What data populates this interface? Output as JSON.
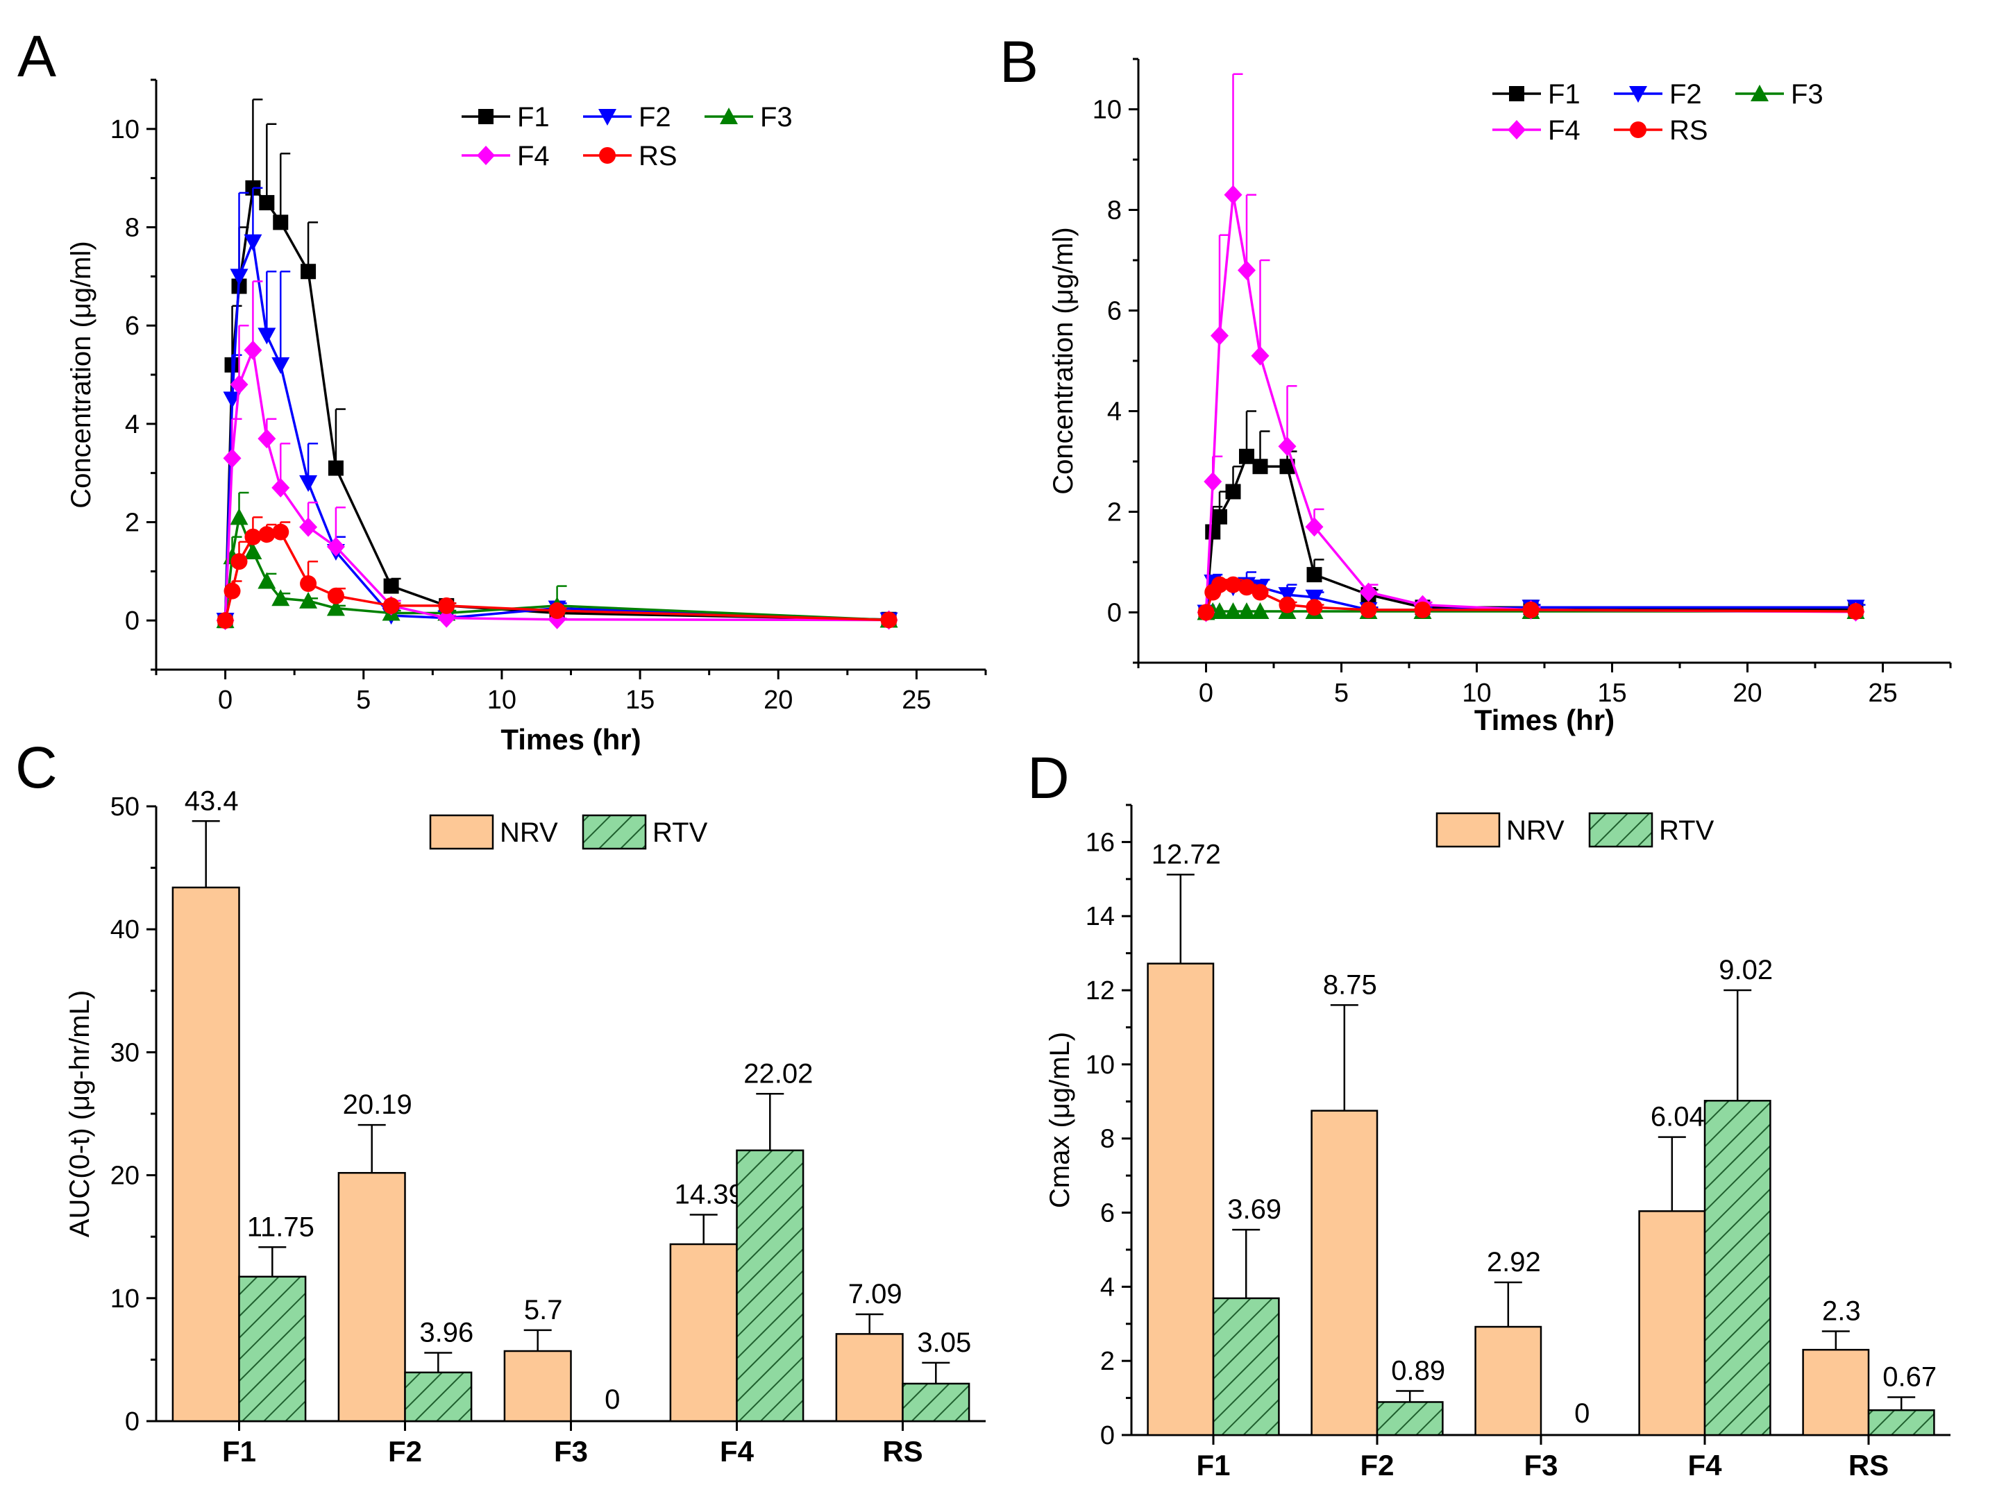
{
  "figure": {
    "panel_letters": [
      "A",
      "B",
      "C",
      "D"
    ]
  },
  "colors": {
    "F1": "#000000",
    "F2": "#0000ff",
    "F3": "#008000",
    "F4": "#ff00ff",
    "RS": "#ff0000",
    "NRV_fill": "#fdc896",
    "RTV_fill": "#8fd9a0",
    "RTV_hatch": "#1f5f2e"
  },
  "chart_data": [
    {
      "id": "A",
      "type": "line",
      "xlabel": "Times (hr)",
      "ylabel": "Concentration (μg/ml)",
      "xlim": [
        -2.5,
        27.5
      ],
      "ylim": [
        -1,
        11
      ],
      "xticks": [
        0,
        5,
        10,
        15,
        20,
        25
      ],
      "yticks": [
        0,
        2,
        4,
        6,
        8,
        10
      ],
      "x": [
        0,
        0.25,
        0.5,
        1,
        1.5,
        2,
        3,
        4,
        6,
        8,
        12,
        24
      ],
      "series": [
        {
          "name": "F1",
          "marker": "square",
          "values": [
            0,
            5.2,
            6.8,
            8.8,
            8.5,
            8.1,
            7.1,
            3.1,
            0.7,
            0.3,
            0.15,
            0.02
          ],
          "errors": [
            0,
            1.2,
            1.2,
            1.8,
            1.6,
            1.4,
            1.0,
            1.2,
            0.15,
            0.05,
            0.05,
            0
          ]
        },
        {
          "name": "F2",
          "marker": "triangle-down",
          "values": [
            0,
            4.5,
            7.0,
            7.7,
            5.8,
            5.2,
            2.8,
            1.4,
            0.1,
            0.05,
            0.25,
            0.01
          ],
          "errors": [
            0,
            0.9,
            1.7,
            1.1,
            1.3,
            1.9,
            0.8,
            0.3,
            0.05,
            0.02,
            0.1,
            0
          ]
        },
        {
          "name": "F3",
          "marker": "triangle-up",
          "values": [
            0,
            1.3,
            2.1,
            1.4,
            0.8,
            0.45,
            0.4,
            0.25,
            0.15,
            0.15,
            0.3,
            0.01
          ],
          "errors": [
            0,
            0.4,
            0.5,
            0.25,
            0.15,
            0.1,
            0.05,
            0.05,
            0.05,
            0.05,
            0.4,
            0
          ]
        },
        {
          "name": "F4",
          "marker": "diamond",
          "values": [
            0,
            3.3,
            4.8,
            5.5,
            3.7,
            2.7,
            1.9,
            1.5,
            0.3,
            0.05,
            0.02,
            0.01
          ],
          "errors": [
            0,
            0.8,
            1.2,
            1.4,
            0.4,
            0.9,
            0.5,
            0.8,
            0.1,
            0.05,
            0.02,
            0
          ]
        },
        {
          "name": "RS",
          "marker": "circle",
          "values": [
            0,
            0.6,
            1.2,
            1.7,
            1.75,
            1.8,
            0.75,
            0.5,
            0.3,
            0.3,
            0.2,
            0.01
          ],
          "errors": [
            0,
            0.2,
            0.4,
            0.4,
            0.2,
            0.2,
            0.45,
            0.15,
            0.05,
            0.05,
            0.05,
            0
          ]
        }
      ],
      "legend": [
        [
          "F1",
          "F2",
          "F3"
        ],
        [
          "F4",
          "RS"
        ]
      ]
    },
    {
      "id": "B",
      "type": "line",
      "xlabel": "Times (hr)",
      "ylabel": "Concentration (μg/ml)",
      "xlim": [
        -2.5,
        27.5
      ],
      "ylim": [
        -1,
        11
      ],
      "xticks": [
        0,
        5,
        10,
        15,
        20,
        25
      ],
      "yticks": [
        0,
        2,
        4,
        6,
        8,
        10
      ],
      "x": [
        0,
        0.25,
        0.5,
        1,
        1.5,
        2,
        3,
        4,
        6,
        8,
        12,
        24
      ],
      "series": [
        {
          "name": "F1",
          "marker": "square",
          "values": [
            0,
            1.6,
            1.9,
            2.4,
            3.1,
            2.9,
            2.9,
            0.75,
            0.35,
            0.1,
            0.1,
            0.05
          ],
          "errors": [
            0,
            0.5,
            0.5,
            0.5,
            0.9,
            0.7,
            0.3,
            0.3,
            0.1,
            0.05,
            0.05,
            0
          ]
        },
        {
          "name": "F2",
          "marker": "triangle-down",
          "values": [
            0,
            0.6,
            0.5,
            0.5,
            0.55,
            0.5,
            0.35,
            0.3,
            0.05,
            0.05,
            0.1,
            0.1
          ],
          "errors": [
            0,
            0.15,
            0.1,
            0.1,
            0.25,
            0.15,
            0.2,
            0.1,
            0.05,
            0.05,
            0.05,
            0.05
          ]
        },
        {
          "name": "F3",
          "marker": "triangle-up",
          "values": [
            0,
            0.02,
            0.02,
            0.02,
            0.02,
            0.02,
            0.02,
            0.02,
            0.02,
            0.02,
            0.02,
            0.02
          ],
          "errors": [
            0,
            0,
            0,
            0,
            0,
            0,
            0,
            0,
            0,
            0,
            0,
            0
          ]
        },
        {
          "name": "F4",
          "marker": "diamond",
          "values": [
            0,
            2.6,
            5.5,
            8.3,
            6.8,
            5.1,
            3.3,
            1.7,
            0.4,
            0.15,
            0.05,
            0.01
          ],
          "errors": [
            0,
            0.5,
            2.0,
            2.4,
            1.5,
            1.9,
            1.2,
            0.35,
            0.15,
            0.05,
            0.05,
            0
          ]
        },
        {
          "name": "RS",
          "marker": "circle",
          "values": [
            0,
            0.4,
            0.55,
            0.55,
            0.5,
            0.4,
            0.15,
            0.1,
            0.05,
            0.05,
            0.05,
            0.02
          ],
          "errors": [
            0,
            0.15,
            0.1,
            0.1,
            0.05,
            0.05,
            0.05,
            0.05,
            0.02,
            0.02,
            0.02,
            0
          ]
        }
      ],
      "legend": [
        [
          "F1",
          "F2",
          "F3"
        ],
        [
          "F4",
          "RS"
        ]
      ]
    },
    {
      "id": "C",
      "type": "bar",
      "ylabel": "AUC(0-t) (μg-hr/mL)",
      "xlabel": "",
      "ylim": [
        0,
        50
      ],
      "yticks": [
        0,
        10,
        20,
        30,
        40,
        50
      ],
      "categories": [
        "F1",
        "F2",
        "F3",
        "F4",
        "RS"
      ],
      "series": [
        {
          "name": "NRV",
          "values": [
            43.4,
            20.19,
            5.7,
            14.39,
            7.09
          ],
          "errors": [
            5.4,
            3.9,
            1.7,
            2.4,
            1.6
          ],
          "labels": [
            "43.4",
            "20.19",
            "5.7",
            "14.39",
            "7.09"
          ]
        },
        {
          "name": "RTV",
          "values": [
            11.75,
            3.96,
            0,
            22.02,
            3.05
          ],
          "errors": [
            2.4,
            1.6,
            0,
            4.6,
            1.7
          ],
          "labels": [
            "11.75",
            "3.96",
            "0",
            "22.02",
            "3.05"
          ]
        }
      ]
    },
    {
      "id": "D",
      "type": "bar",
      "ylabel": "Cmax (μg/mL)",
      "xlabel": "",
      "ylim": [
        0,
        17
      ],
      "yticks": [
        0,
        2,
        4,
        6,
        8,
        10,
        12,
        14,
        16
      ],
      "categories": [
        "F1",
        "F2",
        "F3",
        "F4",
        "RS"
      ],
      "series": [
        {
          "name": "NRV",
          "values": [
            12.72,
            8.75,
            2.92,
            6.04,
            2.3
          ],
          "errors": [
            2.4,
            2.85,
            1.2,
            2.0,
            0.5
          ],
          "labels": [
            "12.72",
            "8.75",
            "2.92",
            "6.04",
            "2.3"
          ]
        },
        {
          "name": "RTV",
          "values": [
            3.69,
            0.89,
            0,
            9.02,
            0.67
          ],
          "errors": [
            1.85,
            0.3,
            0,
            2.98,
            0.35
          ],
          "labels": [
            "3.69",
            "0.89",
            "0",
            "9.02",
            "0.67"
          ]
        }
      ]
    }
  ]
}
